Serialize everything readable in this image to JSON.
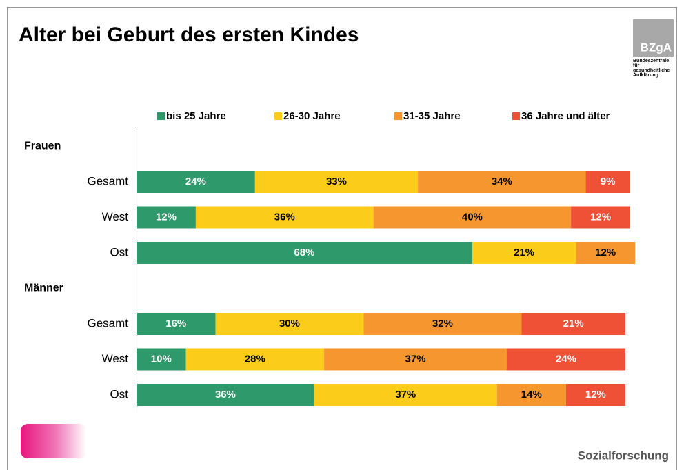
{
  "chart_data": {
    "type": "stacked_bar_horizontal",
    "title": "Alter bei Geburt des ersten Kindes",
    "logo": {
      "name": "BZgA",
      "lines": [
        "Bundeszentrale",
        "für",
        "gesundheitliche",
        "Aufklärung"
      ]
    },
    "footer": "Sozialforschung",
    "groups": [
      "Frauen",
      "Männer"
    ],
    "categories": [
      "Gesamt",
      "West",
      "Ost",
      "Gesamt",
      "West",
      "Ost"
    ],
    "series": [
      {
        "name": "bis 25 Jahre",
        "color": "#2e9a6b",
        "label_color": "#ffffff",
        "values": [
          24,
          12,
          68,
          16,
          10,
          36
        ],
        "value_labels": [
          "24%",
          "12%",
          "68%",
          "16%",
          "10%",
          "36%"
        ]
      },
      {
        "name": "26-30 Jahre",
        "color": "#fccc1b",
        "label_color": "#000000",
        "values": [
          33,
          36,
          21,
          30,
          28,
          37
        ],
        "value_labels": [
          "33%",
          "36%",
          "21%",
          "30%",
          "28%",
          "37%"
        ]
      },
      {
        "name": "31-35 Jahre",
        "color": "#f6962f",
        "label_color": "#000000",
        "values": [
          34,
          40,
          12,
          32,
          37,
          14
        ],
        "value_labels": [
          "34%",
          "40%",
          "12%",
          "32%",
          "37%",
          "14%"
        ]
      },
      {
        "name": "36 Jahre und älter",
        "color": "#ef5136",
        "label_color": "#ffffff",
        "values": [
          9,
          12,
          null,
          21,
          24,
          12
        ],
        "value_labels": [
          "9%",
          "12%",
          null,
          "21%",
          "24%",
          "12%"
        ]
      }
    ]
  }
}
